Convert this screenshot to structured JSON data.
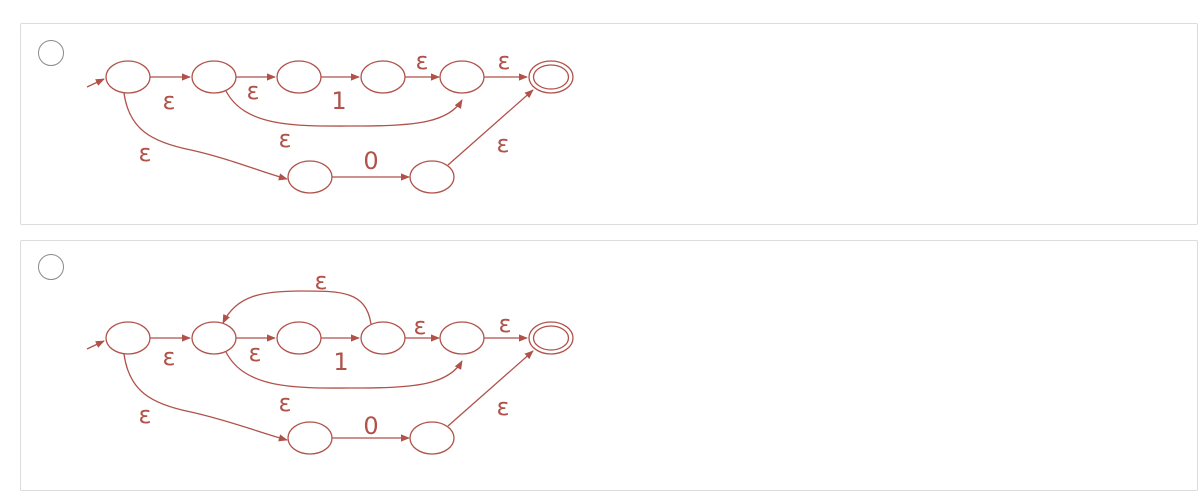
{
  "accent_color": "#b0524a",
  "options": [
    {
      "id": "option-1",
      "labels": {
        "eps1": "ε",
        "eps2": "ε",
        "one": "1",
        "eps3": "ε",
        "eps4": "ε",
        "eps5": "ε",
        "eps6": "ε",
        "zero": "0",
        "eps7": "ε"
      }
    },
    {
      "id": "option-2",
      "labels": {
        "eps_loop": "ε",
        "eps1": "ε",
        "eps2": "ε",
        "one": "1",
        "eps3": "ε",
        "eps4": "ε",
        "eps5": "ε",
        "eps6": "ε",
        "zero": "0",
        "eps7": "ε"
      }
    }
  ]
}
